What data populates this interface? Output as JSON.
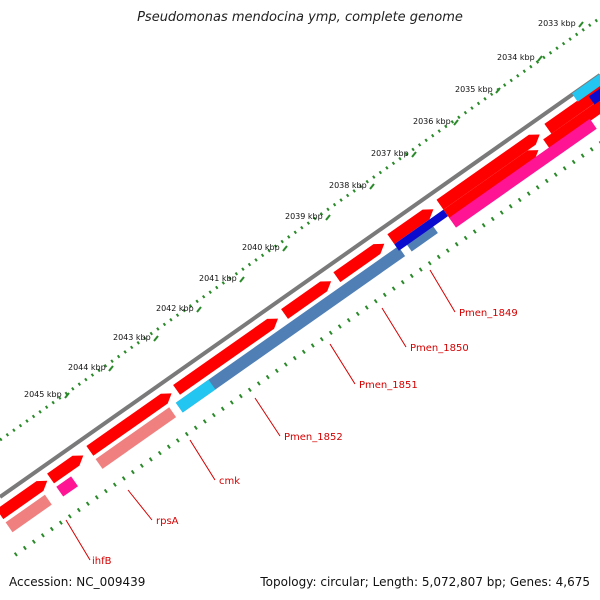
{
  "title": "Pseudomonas mendocina ymp, complete genome",
  "footer": {
    "accession": "Accession: NC_009439",
    "summary": "Topology: circular; Length: 5,072,807 bp; Genes: 4,675"
  },
  "colors": {
    "backbone": "#7a7a7a",
    "cds_forward": "#ff0000",
    "cds_forward_pale": "#f08080",
    "cds_reverse_magenta": "#ff1493",
    "cog_blue": "#4f7fb5",
    "cog_cyan": "#22c6f0",
    "cog_navy": "#0b0bd0",
    "tick": "#2a8a2a",
    "label": "#d40000"
  },
  "scale_ticks": [
    {
      "kbp": 2033,
      "label": "2033 kbp"
    },
    {
      "kbp": 2034,
      "label": "2034 kbp"
    },
    {
      "kbp": 2035,
      "label": "2035 kbp"
    },
    {
      "kbp": 2036,
      "label": "2036 kbp"
    },
    {
      "kbp": 2037,
      "label": "2037 kbp"
    },
    {
      "kbp": 2038,
      "label": "2038 kbp"
    },
    {
      "kbp": 2039,
      "label": "2039 kbp"
    },
    {
      "kbp": 2040,
      "label": "2040 kbp"
    },
    {
      "kbp": 2041,
      "label": "2041 kbp"
    },
    {
      "kbp": 2042,
      "label": "2042 kbp"
    },
    {
      "kbp": 2043,
      "label": "2043 kbp"
    },
    {
      "kbp": 2044,
      "label": "2044 kbp"
    },
    {
      "kbp": 2045,
      "label": "2045 kbp"
    }
  ],
  "gene_labels": [
    "Pmen_1849",
    "Pmen_1850",
    "Pmen_1851",
    "Pmen_1852",
    "cmk",
    "rpsA",
    "ihfB"
  ]
}
